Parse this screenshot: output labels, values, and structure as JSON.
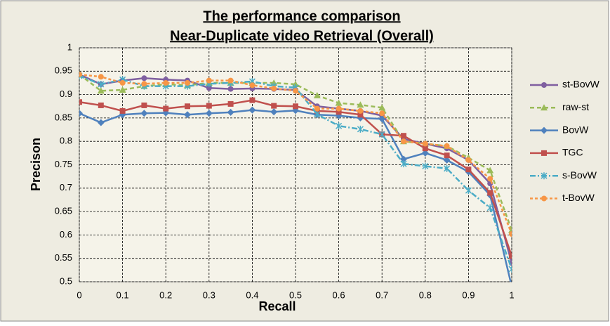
{
  "chart_data": {
    "type": "line",
    "title": [
      "The performance comparison",
      "Near-Duplicate video Retrieval (Overall)"
    ],
    "x_label": "Recall",
    "y_label": "Precison",
    "x": [
      0,
      0.05,
      0.1,
      0.15,
      0.2,
      0.25,
      0.3,
      0.35,
      0.4,
      0.45,
      0.5,
      0.55,
      0.6,
      0.65,
      0.7,
      0.75,
      0.8,
      0.85,
      0.9,
      0.95,
      1
    ],
    "xlim": [
      0,
      1
    ],
    "xticks": [
      0,
      0.1,
      0.2,
      0.3,
      0.4,
      0.5,
      0.6,
      0.7,
      0.8,
      0.9,
      1
    ],
    "ylim": [
      0.5,
      1
    ],
    "yticks": [
      0.5,
      0.55,
      0.6,
      0.65,
      0.7,
      0.75,
      0.8,
      0.85,
      0.9,
      0.95,
      1
    ],
    "grid": true,
    "legend": "right",
    "series": [
      {
        "name": "st-BovW",
        "color": "#7f5fa0",
        "marker": "circle",
        "dash": "none",
        "values": [
          0.943,
          0.922,
          0.93,
          0.935,
          0.932,
          0.93,
          0.914,
          0.912,
          0.913,
          0.912,
          0.91,
          0.875,
          0.87,
          0.865,
          0.855,
          0.805,
          0.795,
          0.785,
          0.76,
          0.71,
          0.54
        ]
      },
      {
        "name": "raw-st",
        "color": "#9bbb59",
        "marker": "triangle",
        "dash": "6 4",
        "values": [
          0.943,
          0.908,
          0.91,
          0.918,
          0.922,
          0.92,
          0.925,
          0.925,
          0.925,
          0.925,
          0.922,
          0.898,
          0.882,
          0.878,
          0.872,
          0.8,
          0.795,
          0.79,
          0.765,
          0.738,
          0.61
        ]
      },
      {
        "name": "BovW",
        "color": "#4f81bd",
        "marker": "diamond",
        "dash": "none",
        "values": [
          0.86,
          0.84,
          0.857,
          0.86,
          0.861,
          0.857,
          0.86,
          0.862,
          0.867,
          0.863,
          0.866,
          0.857,
          0.855,
          0.85,
          0.848,
          0.762,
          0.775,
          0.76,
          0.735,
          0.685,
          0.49
        ]
      },
      {
        "name": "TGC",
        "color": "#c0504d",
        "marker": "square",
        "dash": "none",
        "values": [
          0.884,
          0.877,
          0.865,
          0.877,
          0.87,
          0.875,
          0.876,
          0.88,
          0.888,
          0.876,
          0.875,
          0.865,
          0.863,
          0.857,
          0.815,
          0.812,
          0.785,
          0.77,
          0.74,
          0.69,
          0.555
        ]
      },
      {
        "name": "s-BovW",
        "color": "#4bacc6",
        "marker": "star",
        "dash": "8 3 2 3",
        "values": [
          0.94,
          0.922,
          0.932,
          0.918,
          0.918,
          0.918,
          0.923,
          0.925,
          0.928,
          0.918,
          0.915,
          0.858,
          0.833,
          0.826,
          0.815,
          0.752,
          0.747,
          0.742,
          0.695,
          0.658,
          0.527
        ]
      },
      {
        "name": "t-BovW",
        "color": "#f79646",
        "marker": "circle",
        "dash": "4 3",
        "values": [
          0.943,
          0.938,
          0.925,
          0.923,
          0.925,
          0.925,
          0.93,
          0.93,
          0.92,
          0.913,
          0.908,
          0.87,
          0.87,
          0.865,
          0.86,
          0.8,
          0.795,
          0.79,
          0.76,
          0.72,
          0.602
        ]
      }
    ]
  }
}
